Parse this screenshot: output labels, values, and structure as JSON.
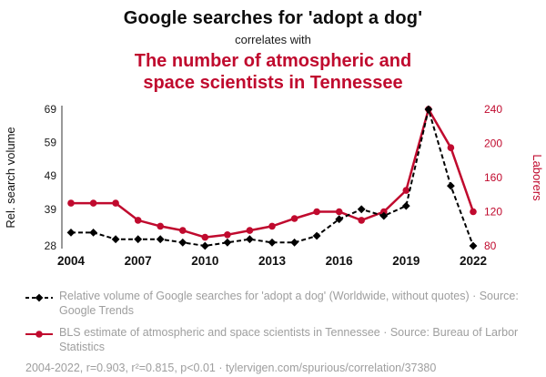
{
  "header": {
    "title": "Google searches for 'adopt a dog'",
    "subtitle": "correlates with",
    "title2": "The number of atmospheric and space scientists in Tennessee"
  },
  "colors": {
    "accent_red": "#c00a2e",
    "series_black": "#000000",
    "muted_gray": "#9e9e9e",
    "tick_text": "#1a1a1a"
  },
  "chart_data": {
    "type": "line",
    "x": [
      2004,
      2005,
      2006,
      2007,
      2008,
      2009,
      2010,
      2011,
      2012,
      2013,
      2014,
      2015,
      2016,
      2017,
      2018,
      2019,
      2020,
      2021,
      2022
    ],
    "x_ticks": [
      2004,
      2007,
      2010,
      2013,
      2016,
      2019,
      2022
    ],
    "left_axis": {
      "label": "Rel. search volume",
      "ticks": [
        28,
        39,
        49,
        59,
        69
      ],
      "range": [
        28,
        69
      ]
    },
    "right_axis": {
      "label": "Laborers",
      "ticks": [
        80,
        120,
        160,
        200,
        240
      ],
      "range": [
        80,
        240
      ]
    },
    "series": [
      {
        "name": "Relative volume of Google searches for 'adopt a dog'",
        "axis": "left",
        "color": "#000000",
        "style": "dashed",
        "marker": "diamond",
        "values": [
          32,
          32,
          30,
          30,
          30,
          29,
          28,
          29,
          30,
          29,
          29,
          31,
          36,
          39,
          37,
          40,
          69,
          46,
          28
        ]
      },
      {
        "name": "BLS estimate of atmospheric and space scientists in Tennessee",
        "axis": "right",
        "color": "#c00a2e",
        "style": "solid",
        "marker": "circle",
        "values": [
          130,
          130,
          130,
          110,
          103,
          98,
          90,
          93,
          98,
          103,
          112,
          120,
          120,
          110,
          120,
          145,
          240,
          195,
          120
        ]
      }
    ],
    "grid": false,
    "legend_position": "bottom"
  },
  "legend": [
    {
      "text": "Relative volume of Google searches for 'adopt a dog' (Worldwide, without quotes) · Source: Google Trends"
    },
    {
      "text": "BLS estimate of atmospheric and space scientists in Tennessee · Source: Bureau of Larbor Statistics"
    }
  ],
  "footer": {
    "text": "2004-2022, r=0.903, r²=0.815, p<0.01 · tylervigen.com/spurious/correlation/37380"
  }
}
